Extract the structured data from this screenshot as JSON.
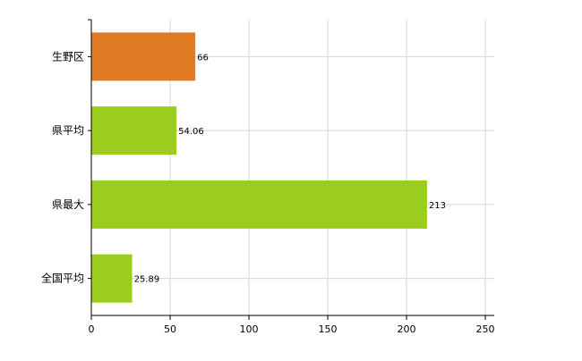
{
  "chart_data": {
    "type": "bar",
    "orientation": "horizontal",
    "categories": [
      "生野区",
      "県平均",
      "県最大",
      "全国平均"
    ],
    "values": [
      66,
      54.06,
      213,
      25.89
    ],
    "value_labels": [
      "66",
      "54.06",
      "213",
      "25.89"
    ],
    "bar_colors": [
      "#e07b24",
      "#9acd1c",
      "#9acd1c",
      "#9acd1c"
    ],
    "xlim": [
      0,
      250
    ],
    "x_ticks": [
      0,
      50,
      100,
      150,
      200,
      250
    ],
    "x_tick_labels": [
      "0",
      "50",
      "100",
      "150",
      "200",
      "250"
    ],
    "grid": true,
    "legend": "none",
    "title": "",
    "xlabel": "",
    "ylabel": ""
  }
}
